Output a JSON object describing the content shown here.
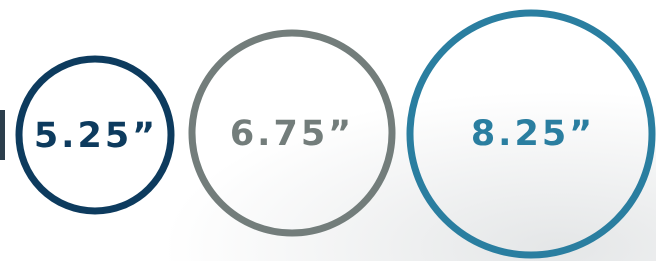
{
  "items": [
    {
      "label": "5.25”"
    },
    {
      "label": "6.75”"
    },
    {
      "label": "8.25”"
    }
  ]
}
